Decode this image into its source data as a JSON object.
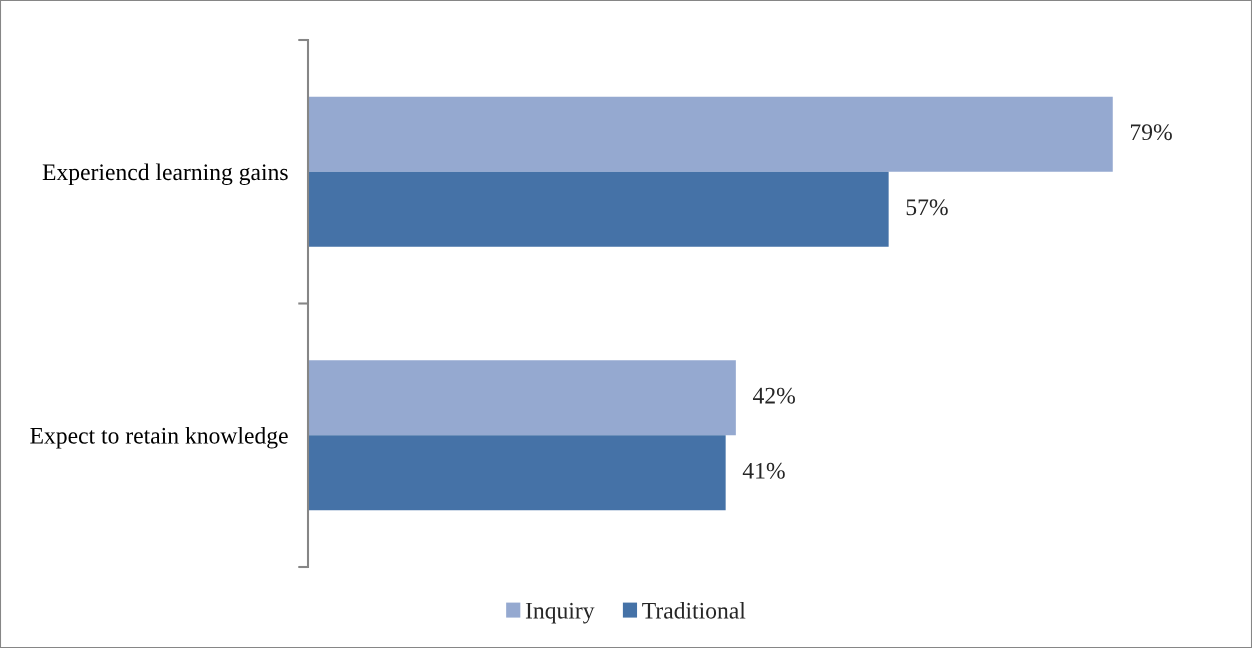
{
  "chart_data": {
    "type": "bar",
    "orientation": "horizontal",
    "categories": [
      "Experiencd learning gains",
      "Expect to retain knowledge"
    ],
    "series": [
      {
        "name": "Inquiry",
        "color": "#95a9d0",
        "values": [
          79,
          42
        ],
        "value_labels": [
          "79%",
          "42%"
        ]
      },
      {
        "name": "Traditional",
        "color": "#4572a7",
        "values": [
          57,
          41
        ],
        "value_labels": [
          "57%",
          "41%"
        ]
      }
    ],
    "tick_labels": "y",
    "grid": false,
    "legend": "bottom"
  }
}
